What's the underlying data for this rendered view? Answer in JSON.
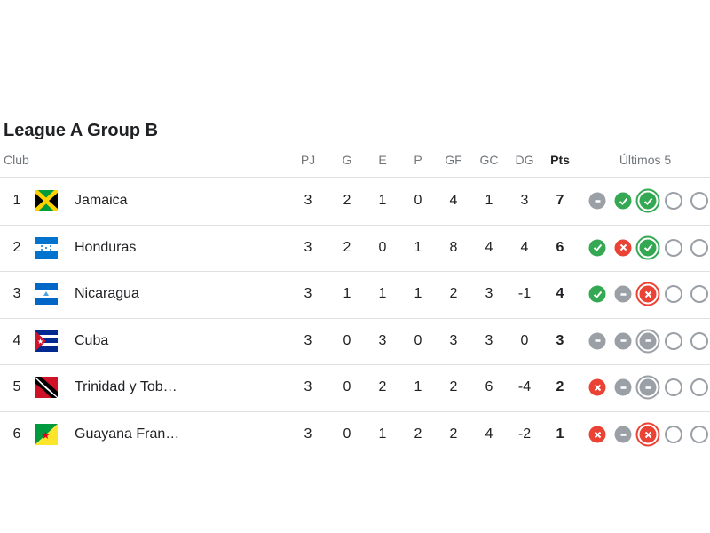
{
  "title": "League A Group B",
  "headers": {
    "club": "Club",
    "pj": "PJ",
    "g": "G",
    "e": "E",
    "p": "P",
    "gf": "GF",
    "gc": "GC",
    "dg": "DG",
    "pts": "Pts",
    "last5": "Últimos 5"
  },
  "colors": {
    "win": "#34a853",
    "loss": "#ea4335",
    "draw": "#9aa0a6"
  },
  "rows": [
    {
      "pos": "1",
      "team": "Jamaica",
      "flag": "jamaica-flag",
      "pj": "3",
      "g": "2",
      "e": "1",
      "p": "0",
      "gf": "4",
      "gc": "1",
      "dg": "3",
      "pts": "7",
      "form": [
        "D",
        "W",
        "W",
        "",
        ""
      ]
    },
    {
      "pos": "2",
      "team": "Honduras",
      "flag": "honduras-flag",
      "pj": "3",
      "g": "2",
      "e": "0",
      "p": "1",
      "gf": "8",
      "gc": "4",
      "dg": "4",
      "pts": "6",
      "form": [
        "W",
        "L",
        "W",
        "",
        ""
      ]
    },
    {
      "pos": "3",
      "team": "Nicaragua",
      "flag": "nicaragua-flag",
      "pj": "3",
      "g": "1",
      "e": "1",
      "p": "1",
      "gf": "2",
      "gc": "3",
      "dg": "-1",
      "pts": "4",
      "form": [
        "W",
        "D",
        "L",
        "",
        ""
      ]
    },
    {
      "pos": "4",
      "team": "Cuba",
      "flag": "cuba-flag",
      "pj": "3",
      "g": "0",
      "e": "3",
      "p": "0",
      "gf": "3",
      "gc": "3",
      "dg": "0",
      "pts": "3",
      "form": [
        "D",
        "D",
        "D",
        "",
        ""
      ]
    },
    {
      "pos": "5",
      "team": "Trinidad y Tob…",
      "flag": "trinidad-flag",
      "pj": "3",
      "g": "0",
      "e": "2",
      "p": "1",
      "gf": "2",
      "gc": "6",
      "dg": "-4",
      "pts": "2",
      "form": [
        "L",
        "D",
        "D",
        "",
        ""
      ]
    },
    {
      "pos": "6",
      "team": "Guayana Fran…",
      "flag": "french-guiana-flag",
      "pj": "3",
      "g": "0",
      "e": "1",
      "p": "2",
      "gf": "2",
      "gc": "4",
      "dg": "-2",
      "pts": "1",
      "form": [
        "L",
        "D",
        "L",
        "",
        ""
      ]
    }
  ]
}
